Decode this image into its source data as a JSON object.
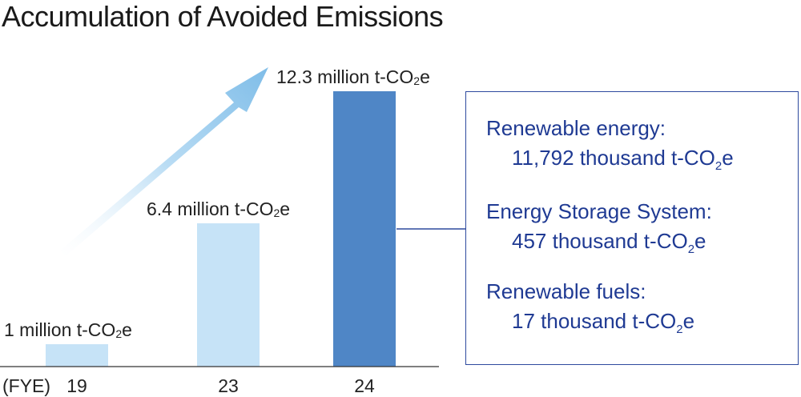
{
  "chart_data": {
    "type": "bar",
    "title": "Accumulation of Avoided Emissions",
    "x_axis_label": "(FYE)",
    "categories": [
      "19",
      "23",
      "24"
    ],
    "values": [
      1,
      6.4,
      12.3
    ],
    "units": "million t-CO2e",
    "data_labels": [
      {
        "main": "1 million t-CO",
        "sub": "2",
        "tail": "e"
      },
      {
        "main": "6.4 million t-CO",
        "sub": "2",
        "tail": "e"
      },
      {
        "main": "12.3 million t-CO",
        "sub": "2",
        "tail": "e"
      }
    ],
    "bar_colors": [
      "#c6e3f7",
      "#c6e3f7",
      "#4f86c6"
    ],
    "arrow_color": "#7fbde8",
    "ylim": [
      0,
      12.3
    ],
    "breakdown": [
      {
        "label": "Renewable energy:",
        "value_main": "11,792 thousand t-CO",
        "value_sub": "2",
        "value_tail": "e",
        "value": 11792
      },
      {
        "label": "Energy Storage System:",
        "value_main": "457 thousand t-CO",
        "value_sub": "2",
        "value_tail": "e",
        "value": 457
      },
      {
        "label": "Renewable fuels:",
        "value_main": "17 thousand t-CO",
        "value_sub": "2",
        "value_tail": "e",
        "value": 17
      }
    ],
    "breakdown_color": "#1f3a93"
  }
}
